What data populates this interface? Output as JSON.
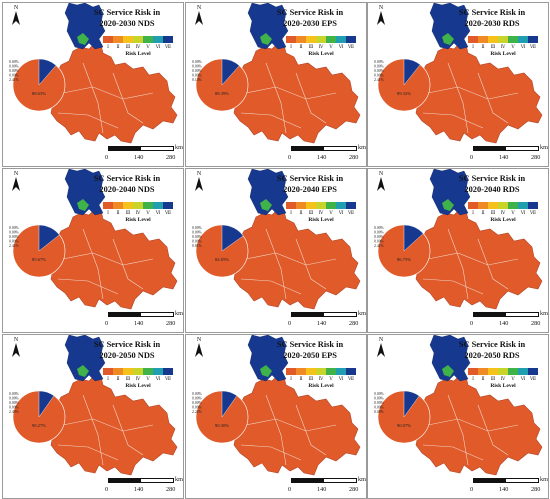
{
  "legend": {
    "risk_label": "Risk Level",
    "levels": [
      "Ⅰ",
      "Ⅱ",
      "Ⅲ",
      "Ⅳ",
      "Ⅴ",
      "Ⅵ",
      "Ⅶ"
    ],
    "colors": [
      "#e05a2a",
      "#f08a24",
      "#f5c21b",
      "#c9d42a",
      "#3fb34a",
      "#1f9fb0",
      "#16398f"
    ]
  },
  "scale": {
    "labels": [
      "0",
      "140",
      "280"
    ],
    "unit": "km"
  },
  "north_label": "N",
  "panels": [
    {
      "title_line1": "SC Service Risk in",
      "title_line2": "2020-2030 NDS",
      "pie_main": "88.63%",
      "pie_labels": [
        "0.00%",
        "0.00%",
        "0.00%",
        "0.00%",
        "2.41%"
      ]
    },
    {
      "title_line1": "SC Service Risk in",
      "title_line2": "2020-2030 EPS",
      "pie_main": "88.39%",
      "pie_labels": [
        "0.00%",
        "0.00%",
        "0.00%",
        "0.00%",
        "0.14%"
      ]
    },
    {
      "title_line1": "SC Service Risk in",
      "title_line2": "2020-2030 RDS",
      "pie_main": "89.32%",
      "pie_labels": [
        "0.00%",
        "0.00%",
        "0.00%",
        "0.00%",
        "2.41%"
      ]
    },
    {
      "title_line1": "SC Service Risk in",
      "title_line2": "2020-2040 NDS",
      "pie_main": "85.67%",
      "pie_labels": [
        "0.00%",
        "0.00%",
        "0.00%",
        "0.00%",
        "2.41%"
      ]
    },
    {
      "title_line1": "SC Service Risk in",
      "title_line2": "2020-2040 EPS",
      "pie_main": "84.85%",
      "pie_labels": [
        "0.00%",
        "0.00%",
        "0.00%",
        "0.00%",
        "0.81%"
      ]
    },
    {
      "title_line1": "SC Service Risk in",
      "title_line2": "2020-2040 RDS",
      "pie_main": "86.75%",
      "pie_labels": [
        "0.00%",
        "0.00%",
        "0.00%",
        "0.00%",
        "2.41%"
      ]
    },
    {
      "title_line1": "SC Service Risk in",
      "title_line2": "2020-2050 NDS",
      "pie_main": "90.27%",
      "pie_labels": [
        "0.00%",
        "0.00%",
        "0.00%",
        "0.00%",
        "2.49%"
      ]
    },
    {
      "title_line1": "SC Service Risk in",
      "title_line2": "2020-2050 EPS",
      "pie_main": "90.30%",
      "pie_labels": [
        "0.00%",
        "0.00%",
        "0.00%",
        "0.00%",
        "2.22%"
      ]
    },
    {
      "title_line1": "SC Service Risk in",
      "title_line2": "2020-2050 RDS",
      "pie_main": "90.07%",
      "pie_labels": [
        "0.00%",
        "0.00%",
        "0.00%",
        "0.00%",
        "0.00%"
      ]
    }
  ]
}
